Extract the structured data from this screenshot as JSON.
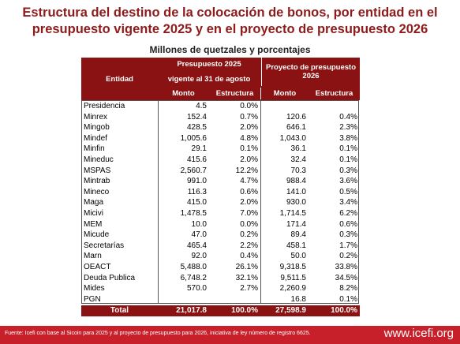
{
  "header": {
    "title": "Estructura del destino de la colocación de bonos, por entidad en el presupuesto vigente 2025 y en el proyecto de presupuesto 2026",
    "subtitle": "Millones de quetzales y porcentajes"
  },
  "table": {
    "columns": {
      "entity": "Entidad",
      "group1": "Presupuesto 2025",
      "group1_sub": "vigente al 31 de agosto",
      "group2": "Proyecto de presupuesto 2026",
      "sub": [
        "Monto",
        "Estructura",
        "Monto",
        "Estructura"
      ]
    },
    "rows": [
      [
        "Presidencia",
        "4.5",
        "0.0%",
        null,
        null
      ],
      [
        "Minrex",
        "152.4",
        "0.7%",
        "120.6",
        "0.4%"
      ],
      [
        "Mingob",
        "428.5",
        "2.0%",
        "646.1",
        "2.3%"
      ],
      [
        "Mindef",
        "1,005.6",
        "4.8%",
        "1,043.0",
        "3.8%"
      ],
      [
        "Minfin",
        "29.1",
        "0.1%",
        "36.1",
        "0.1%"
      ],
      [
        "Mineduc",
        "415.6",
        "2.0%",
        "32.4",
        "0.1%"
      ],
      [
        "MSPAS",
        "2,560.7",
        "12.2%",
        "70.3",
        "0.3%"
      ],
      [
        "Mintrab",
        "991.0",
        "4.7%",
        "988.4",
        "3.6%"
      ],
      [
        "Mineco",
        "116.3",
        "0.6%",
        "141.0",
        "0.5%"
      ],
      [
        "Maga",
        "415.0",
        "2.0%",
        "930.0",
        "3.4%"
      ],
      [
        "Micivi",
        "1,478.5",
        "7.0%",
        "1,714.5",
        "6.2%"
      ],
      [
        "MEM",
        "10.0",
        "0.0%",
        "171.4",
        "0.6%"
      ],
      [
        "Micude",
        "47.0",
        "0.2%",
        "89.4",
        "0.3%"
      ],
      [
        "Secretarías",
        "465.4",
        "2.2%",
        "458.1",
        "1.7%"
      ],
      [
        "Marn",
        "92.0",
        "0.4%",
        "50.0",
        "0.2%"
      ],
      [
        "OEACT",
        "5,488.0",
        "26.1%",
        "9,318.5",
        "33.8%"
      ],
      [
        "Deuda Publica",
        "6,748.2",
        "32.1%",
        "9,511.5",
        "34.5%"
      ],
      [
        "Mides",
        "570.0",
        "2.7%",
        "2,260.9",
        "8.2%"
      ],
      [
        "PGN",
        null,
        null,
        "16.8",
        "0.1%"
      ]
    ],
    "total": [
      "Total",
      "21,017.8",
      "100.0%",
      "27,598.9",
      "100.0%"
    ]
  },
  "footer": {
    "source": "Fuente: Icefi con base al Sicoin para 2025 y al proyecto de presupuesto para 2026, iniciativa de ley número de registro 6625.",
    "site": "www.icefi.org"
  }
}
